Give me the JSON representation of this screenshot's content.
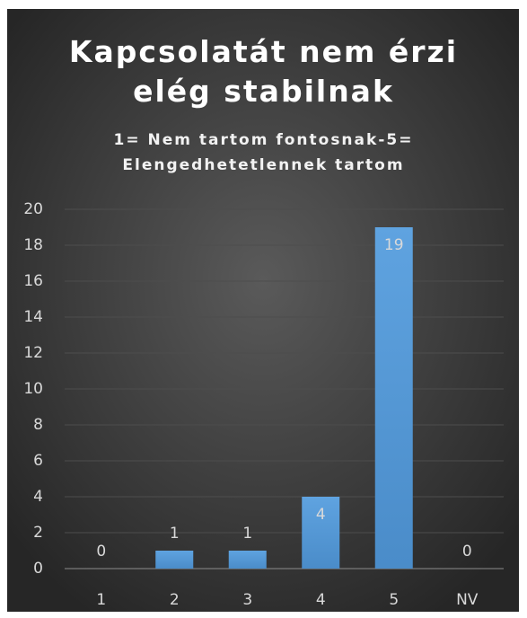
{
  "chart_data": {
    "type": "bar",
    "title": "Kapcsolatát nem érzi elég stabilnak",
    "subtitle": "1= Nem tartom fontosnak-5= Elengedhetetlennek tartom",
    "categories": [
      "1",
      "2",
      "3",
      "4",
      "5",
      "NV"
    ],
    "values": [
      0,
      1,
      1,
      4,
      19,
      0
    ],
    "color": "#5b9bd5",
    "ylim": [
      0,
      20
    ],
    "yticks": [
      0,
      2,
      4,
      6,
      8,
      10,
      12,
      14,
      16,
      18,
      20
    ],
    "grid": true
  }
}
